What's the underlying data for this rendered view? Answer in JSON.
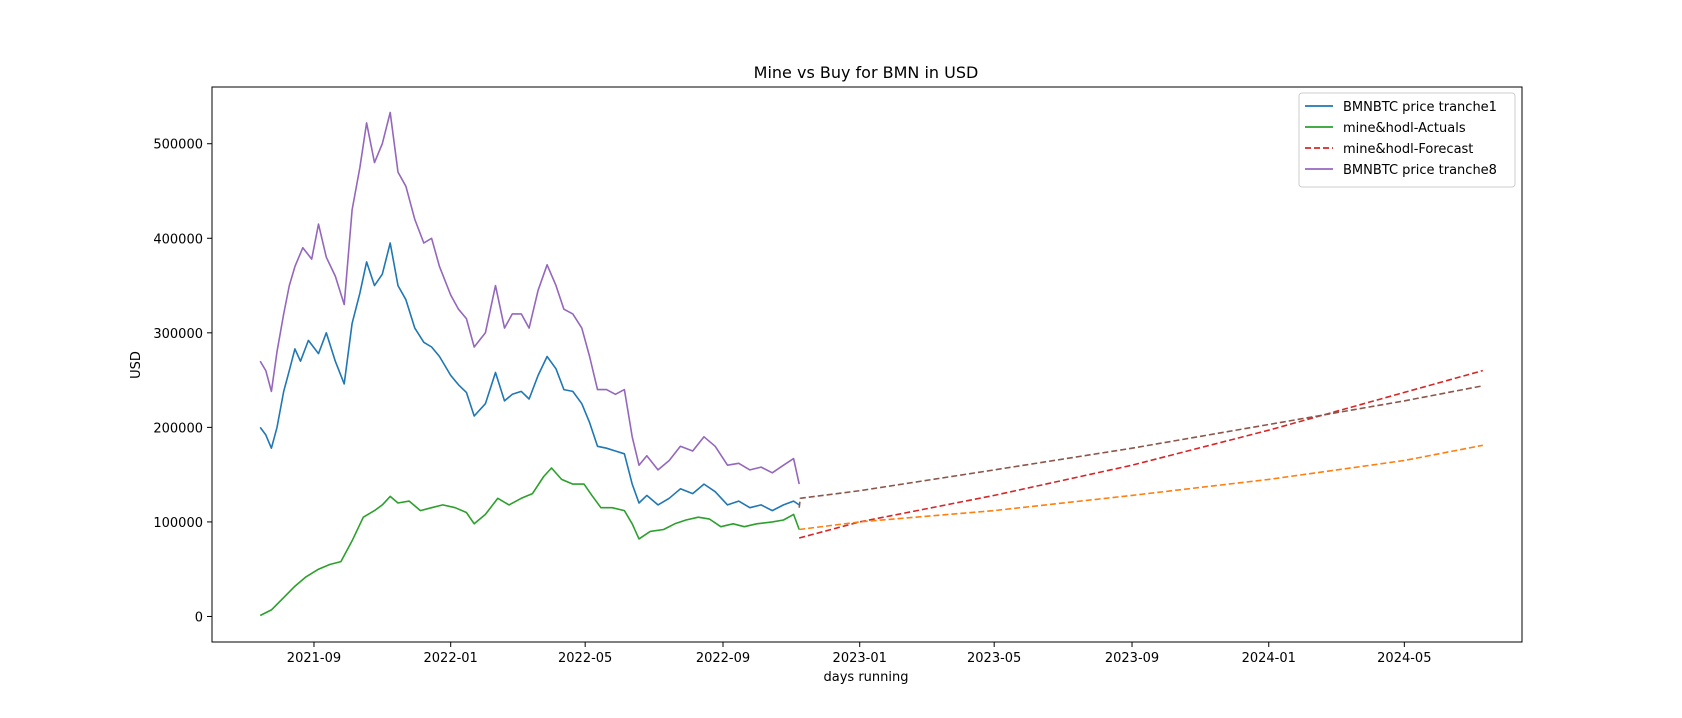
{
  "chart_data": {
    "type": "line",
    "title": "Mine vs Buy for BMN in USD",
    "xlabel": "days running",
    "ylabel": "USD",
    "xlim": [
      "2021-06-02",
      "2024-08-14"
    ],
    "ylim": [
      -27000,
      560000
    ],
    "x_ticks": [
      "2021-09-01",
      "2022-01-01",
      "2022-05-01",
      "2022-09-01",
      "2023-01-01",
      "2023-05-01",
      "2023-09-01",
      "2024-01-01",
      "2024-05-01"
    ],
    "x_tick_labels": [
      "2021-09",
      "2022-01",
      "2022-05",
      "2022-09",
      "2023-01",
      "2023-05",
      "2023-09",
      "2024-01",
      "2024-05"
    ],
    "y_ticks": [
      0,
      100000,
      200000,
      300000,
      400000,
      500000
    ],
    "y_tick_labels": [
      "0",
      "100000",
      "200000",
      "300000",
      "400000",
      "500000"
    ],
    "grid": false,
    "legend_position": "top-right",
    "series": [
      {
        "name": "BMNBTC price tranche1",
        "color": "#1f77b4",
        "style": "solid",
        "points": [
          [
            "2021-07-15",
            200000
          ],
          [
            "2021-07-20",
            192000
          ],
          [
            "2021-07-25",
            178000
          ],
          [
            "2021-07-30",
            200000
          ],
          [
            "2021-08-05",
            238000
          ],
          [
            "2021-08-10",
            260000
          ],
          [
            "2021-08-15",
            283000
          ],
          [
            "2021-08-20",
            270000
          ],
          [
            "2021-08-27",
            292000
          ],
          [
            "2021-09-05",
            278000
          ],
          [
            "2021-09-12",
            300000
          ],
          [
            "2021-09-20",
            270000
          ],
          [
            "2021-09-28",
            246000
          ],
          [
            "2021-10-05",
            310000
          ],
          [
            "2021-10-12",
            342000
          ],
          [
            "2021-10-18",
            375000
          ],
          [
            "2021-10-25",
            350000
          ],
          [
            "2021-11-01",
            362000
          ],
          [
            "2021-11-08",
            395000
          ],
          [
            "2021-11-15",
            350000
          ],
          [
            "2021-11-22",
            335000
          ],
          [
            "2021-11-30",
            305000
          ],
          [
            "2021-12-08",
            290000
          ],
          [
            "2021-12-15",
            285000
          ],
          [
            "2021-12-22",
            275000
          ],
          [
            "2022-01-01",
            255000
          ],
          [
            "2022-01-08",
            245000
          ],
          [
            "2022-01-15",
            237000
          ],
          [
            "2022-01-22",
            212000
          ],
          [
            "2022-02-01",
            225000
          ],
          [
            "2022-02-10",
            258000
          ],
          [
            "2022-02-18",
            228000
          ],
          [
            "2022-02-25",
            235000
          ],
          [
            "2022-03-05",
            238000
          ],
          [
            "2022-03-12",
            230000
          ],
          [
            "2022-03-20",
            255000
          ],
          [
            "2022-03-28",
            275000
          ],
          [
            "2022-04-05",
            262000
          ],
          [
            "2022-04-12",
            240000
          ],
          [
            "2022-04-20",
            238000
          ],
          [
            "2022-04-28",
            225000
          ],
          [
            "2022-05-05",
            205000
          ],
          [
            "2022-05-12",
            180000
          ],
          [
            "2022-05-20",
            178000
          ],
          [
            "2022-05-28",
            175000
          ],
          [
            "2022-06-05",
            172000
          ],
          [
            "2022-06-12",
            140000
          ],
          [
            "2022-06-18",
            120000
          ],
          [
            "2022-06-25",
            128000
          ],
          [
            "2022-07-05",
            118000
          ],
          [
            "2022-07-15",
            125000
          ],
          [
            "2022-07-25",
            135000
          ],
          [
            "2022-08-05",
            130000
          ],
          [
            "2022-08-15",
            140000
          ],
          [
            "2022-08-25",
            132000
          ],
          [
            "2022-09-05",
            118000
          ],
          [
            "2022-09-15",
            122000
          ],
          [
            "2022-09-25",
            115000
          ],
          [
            "2022-10-05",
            118000
          ],
          [
            "2022-10-15",
            112000
          ],
          [
            "2022-10-25",
            118000
          ],
          [
            "2022-11-03",
            122000
          ],
          [
            "2022-11-08",
            118000
          ]
        ]
      },
      {
        "name": "mine&hodl-Actuals",
        "color": "#2ca02c",
        "style": "solid",
        "points": [
          [
            "2021-07-15",
            1000
          ],
          [
            "2021-07-25",
            7000
          ],
          [
            "2021-08-05",
            20000
          ],
          [
            "2021-08-15",
            32000
          ],
          [
            "2021-08-25",
            42000
          ],
          [
            "2021-09-05",
            50000
          ],
          [
            "2021-09-15",
            55000
          ],
          [
            "2021-09-25",
            58000
          ],
          [
            "2021-10-05",
            80000
          ],
          [
            "2021-10-15",
            105000
          ],
          [
            "2021-10-25",
            112000
          ],
          [
            "2021-11-01",
            118000
          ],
          [
            "2021-11-08",
            127000
          ],
          [
            "2021-11-15",
            120000
          ],
          [
            "2021-11-25",
            122000
          ],
          [
            "2021-12-05",
            112000
          ],
          [
            "2021-12-15",
            115000
          ],
          [
            "2021-12-25",
            118000
          ],
          [
            "2022-01-05",
            115000
          ],
          [
            "2022-01-15",
            110000
          ],
          [
            "2022-01-22",
            98000
          ],
          [
            "2022-02-01",
            108000
          ],
          [
            "2022-02-12",
            125000
          ],
          [
            "2022-02-22",
            118000
          ],
          [
            "2022-03-05",
            125000
          ],
          [
            "2022-03-15",
            130000
          ],
          [
            "2022-03-25",
            148000
          ],
          [
            "2022-04-01",
            157000
          ],
          [
            "2022-04-10",
            145000
          ],
          [
            "2022-04-20",
            140000
          ],
          [
            "2022-04-30",
            140000
          ],
          [
            "2022-05-07",
            128000
          ],
          [
            "2022-05-15",
            115000
          ],
          [
            "2022-05-25",
            115000
          ],
          [
            "2022-06-05",
            112000
          ],
          [
            "2022-06-12",
            98000
          ],
          [
            "2022-06-18",
            82000
          ],
          [
            "2022-06-28",
            90000
          ],
          [
            "2022-07-10",
            92000
          ],
          [
            "2022-07-20",
            98000
          ],
          [
            "2022-07-30",
            102000
          ],
          [
            "2022-08-10",
            105000
          ],
          [
            "2022-08-20",
            103000
          ],
          [
            "2022-08-30",
            95000
          ],
          [
            "2022-09-10",
            98000
          ],
          [
            "2022-09-20",
            95000
          ],
          [
            "2022-10-01",
            98000
          ],
          [
            "2022-10-15",
            100000
          ],
          [
            "2022-10-25",
            102000
          ],
          [
            "2022-11-03",
            108000
          ],
          [
            "2022-11-08",
            92000
          ]
        ]
      },
      {
        "name": "mine&hodl-Forecast",
        "color": "#d62728",
        "style": "dashed",
        "points": [
          [
            "2022-11-08",
            83000
          ],
          [
            "2023-01-01",
            100000
          ],
          [
            "2023-05-01",
            128000
          ],
          [
            "2023-09-01",
            160000
          ],
          [
            "2024-01-01",
            197000
          ],
          [
            "2024-05-01",
            237000
          ],
          [
            "2024-07-10",
            260000
          ]
        ]
      },
      {
        "name": "BMNBTC price tranche8",
        "color": "#9467bd",
        "style": "solid",
        "points": [
          [
            "2021-07-15",
            270000
          ],
          [
            "2021-07-20",
            260000
          ],
          [
            "2021-07-25",
            238000
          ],
          [
            "2021-07-30",
            280000
          ],
          [
            "2021-08-05",
            320000
          ],
          [
            "2021-08-10",
            350000
          ],
          [
            "2021-08-15",
            370000
          ],
          [
            "2021-08-22",
            390000
          ],
          [
            "2021-08-30",
            378000
          ],
          [
            "2021-09-05",
            415000
          ],
          [
            "2021-09-12",
            380000
          ],
          [
            "2021-09-20",
            360000
          ],
          [
            "2021-09-28",
            330000
          ],
          [
            "2021-10-05",
            430000
          ],
          [
            "2021-10-12",
            475000
          ],
          [
            "2021-10-18",
            522000
          ],
          [
            "2021-10-25",
            480000
          ],
          [
            "2021-11-01",
            500000
          ],
          [
            "2021-11-08",
            533000
          ],
          [
            "2021-11-15",
            470000
          ],
          [
            "2021-11-22",
            455000
          ],
          [
            "2021-11-30",
            420000
          ],
          [
            "2021-12-08",
            395000
          ],
          [
            "2021-12-15",
            400000
          ],
          [
            "2021-12-22",
            370000
          ],
          [
            "2022-01-01",
            340000
          ],
          [
            "2022-01-08",
            325000
          ],
          [
            "2022-01-15",
            315000
          ],
          [
            "2022-01-22",
            285000
          ],
          [
            "2022-02-01",
            300000
          ],
          [
            "2022-02-10",
            350000
          ],
          [
            "2022-02-18",
            305000
          ],
          [
            "2022-02-25",
            320000
          ],
          [
            "2022-03-05",
            320000
          ],
          [
            "2022-03-12",
            305000
          ],
          [
            "2022-03-20",
            345000
          ],
          [
            "2022-03-28",
            372000
          ],
          [
            "2022-04-05",
            350000
          ],
          [
            "2022-04-12",
            325000
          ],
          [
            "2022-04-20",
            320000
          ],
          [
            "2022-04-28",
            305000
          ],
          [
            "2022-05-05",
            275000
          ],
          [
            "2022-05-12",
            240000
          ],
          [
            "2022-05-20",
            240000
          ],
          [
            "2022-05-28",
            235000
          ],
          [
            "2022-06-05",
            240000
          ],
          [
            "2022-06-12",
            190000
          ],
          [
            "2022-06-18",
            160000
          ],
          [
            "2022-06-25",
            170000
          ],
          [
            "2022-07-05",
            155000
          ],
          [
            "2022-07-15",
            165000
          ],
          [
            "2022-07-25",
            180000
          ],
          [
            "2022-08-05",
            175000
          ],
          [
            "2022-08-15",
            190000
          ],
          [
            "2022-08-25",
            180000
          ],
          [
            "2022-09-05",
            160000
          ],
          [
            "2022-09-15",
            162000
          ],
          [
            "2022-09-25",
            155000
          ],
          [
            "2022-10-05",
            158000
          ],
          [
            "2022-10-15",
            152000
          ],
          [
            "2022-10-25",
            160000
          ],
          [
            "2022-11-03",
            167000
          ],
          [
            "2022-11-08",
            140000
          ]
        ]
      },
      {
        "color": "#ff7f0e",
        "style": "dashed",
        "points": [
          [
            "2022-11-08",
            92000
          ],
          [
            "2023-01-01",
            100000
          ],
          [
            "2023-05-01",
            112000
          ],
          [
            "2023-09-01",
            128000
          ],
          [
            "2024-01-01",
            145000
          ],
          [
            "2024-05-01",
            165000
          ],
          [
            "2024-07-10",
            181000
          ]
        ]
      },
      {
        "color": "#8c564b",
        "style": "dashed",
        "points": [
          [
            "2022-11-08",
            115000
          ],
          [
            "2022-11-09",
            125000
          ],
          [
            "2023-01-01",
            133000
          ],
          [
            "2023-05-01",
            155000
          ],
          [
            "2023-09-01",
            178000
          ],
          [
            "2024-01-01",
            203000
          ],
          [
            "2024-05-01",
            228000
          ],
          [
            "2024-07-10",
            244000
          ]
        ]
      }
    ]
  }
}
